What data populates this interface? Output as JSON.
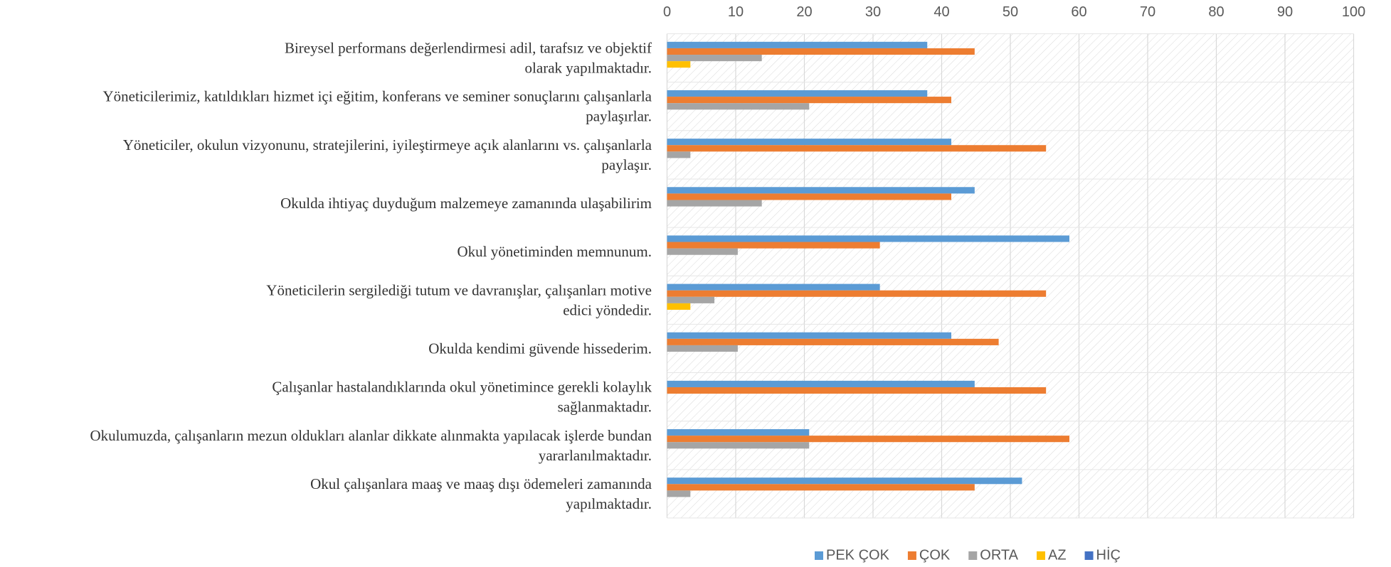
{
  "chart_data": {
    "type": "barh",
    "categories": [
      [
        "Bireysel performans değerlendirmesi adil, tarafsız ve objektif",
        "olarak yapılmaktadır."
      ],
      [
        "Yöneticilerimiz, katıldıkları hizmet içi eğitim, konferans ve seminer sonuçlarını çalışanlarla",
        "paylaşırlar."
      ],
      [
        "Yöneticiler, okulun vizyonunu, stratejilerini, iyileştirmeye açık alanlarını vs. çalışanlarla",
        "paylaşır."
      ],
      [
        "Okulda ihtiyaç duyduğum malzemeye zamanında ulaşabilirim"
      ],
      [
        "Okul yönetiminden memnunum."
      ],
      [
        "Yöneticilerin sergilediği tutum ve davranışlar, çalışanları motive",
        "edici yöndedir."
      ],
      [
        "Okulda kendimi güvende hissederim."
      ],
      [
        "Çalışanlar hastalandıklarında okul yönetimince gerekli kolaylık",
        "sağlanmaktadır."
      ],
      [
        "Okulumuzda, çalışanların mezun oldukları alanlar dikkate alınmakta yapılacak işlerde bundan",
        "yararlanılmaktadır."
      ],
      [
        "Okul çalışanlara maaş ve maaş dışı ödemeleri zamanında",
        "yapılmaktadır."
      ]
    ],
    "series": [
      {
        "name": "PEK ÇOK",
        "color": "#5b9bd5",
        "values": [
          37.9,
          37.9,
          41.4,
          44.8,
          58.6,
          31.0,
          41.4,
          44.8,
          20.7,
          51.7
        ]
      },
      {
        "name": "ÇOK",
        "color": "#ed7d31",
        "values": [
          44.8,
          41.4,
          55.2,
          41.4,
          31.0,
          55.2,
          48.3,
          55.2,
          58.6,
          44.8
        ]
      },
      {
        "name": "ORTA",
        "color": "#a5a5a5",
        "values": [
          13.8,
          20.7,
          3.4,
          13.8,
          10.3,
          6.9,
          10.3,
          0,
          20.7,
          3.4
        ]
      },
      {
        "name": "AZ",
        "color": "#ffc000",
        "values": [
          3.4,
          0,
          0,
          0,
          0,
          3.4,
          0,
          0,
          0,
          0
        ]
      },
      {
        "name": "HİÇ",
        "color": "#4472c4",
        "values": [
          0,
          0,
          0,
          0,
          0,
          0,
          0,
          0,
          0,
          0
        ]
      }
    ],
    "xlim": [
      0,
      100
    ],
    "xticks": [
      0,
      10,
      20,
      30,
      40,
      50,
      60,
      70,
      80,
      90,
      100
    ],
    "grid": true,
    "legend": "bottom"
  }
}
